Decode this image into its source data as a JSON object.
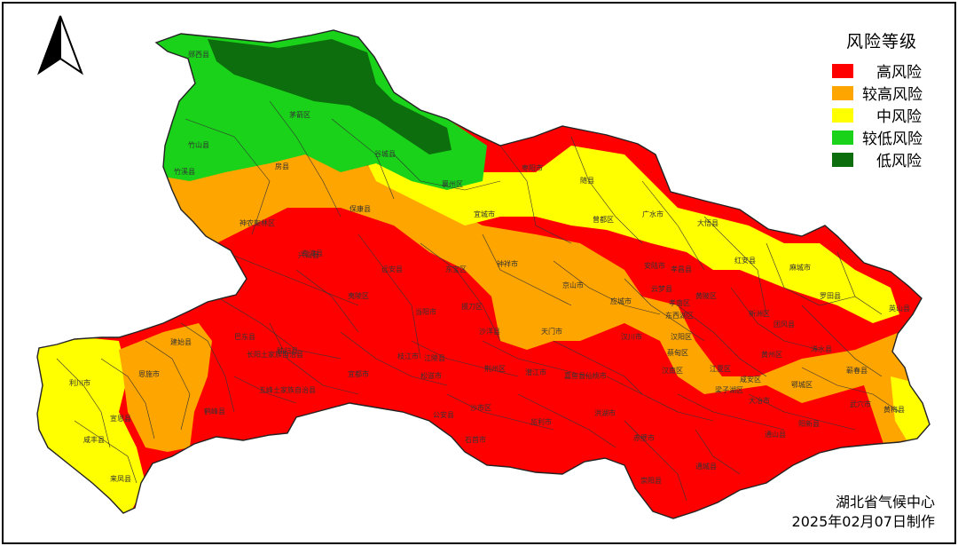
{
  "legend": {
    "title": "风险等级",
    "items": [
      {
        "label": "高风险",
        "color": "#ff0000"
      },
      {
        "label": "较高风险",
        "color": "#ffa500"
      },
      {
        "label": "中风险",
        "color": "#ffff00"
      },
      {
        "label": "较低风险",
        "color": "#19d219"
      },
      {
        "label": "低风险",
        "color": "#0c6e0c"
      }
    ]
  },
  "credit": {
    "org": "湖北省气候中心",
    "date": "2025年02月07日制作"
  },
  "places": [
    "郧西县",
    "茅箭区",
    "竹山县",
    "竹溪县",
    "房县",
    "谷城县",
    "襄州区",
    "枣阳市",
    "随县",
    "宜城市",
    "保康县",
    "南漳县",
    "广水市",
    "大悟县",
    "曾都区",
    "神农架林区",
    "兴山县",
    "远安县",
    "东宝区",
    "钟祥市",
    "京山市",
    "安陆市",
    "孝昌县",
    "红安县",
    "麻城市",
    "罗田县",
    "英山县",
    "夷陵区",
    "当阳市",
    "沙洋县",
    "掇刀区",
    "应城市",
    "云梦县",
    "孝南区",
    "黄陂区",
    "新洲区",
    "团风县",
    "浠水县",
    "蕲春县",
    "武穴市",
    "黄梅县",
    "巴东县",
    "秭归县",
    "长阳土家族自治县",
    "五峰土家族自治县",
    "宜都市",
    "枝江市",
    "松滋市",
    "公安县",
    "石首市",
    "监利市",
    "洪湖市",
    "嘉鱼县",
    "赤壁市",
    "崇阳县",
    "通城县",
    "通山县",
    "阳新县",
    "咸安区",
    "江夏区",
    "汉南区",
    "蔡甸区",
    "汉川市",
    "天门市",
    "潜江市",
    "仙桃市",
    "荆州区",
    "沙市区",
    "江陵县",
    "黄州区",
    "鄂城区",
    "梁子湖区",
    "大冶市",
    "利川市",
    "恩施市",
    "建始县",
    "鹤峰县",
    "宣恩县",
    "咸丰县",
    "来凤县",
    "汉阳区",
    "东西湖区"
  ]
}
